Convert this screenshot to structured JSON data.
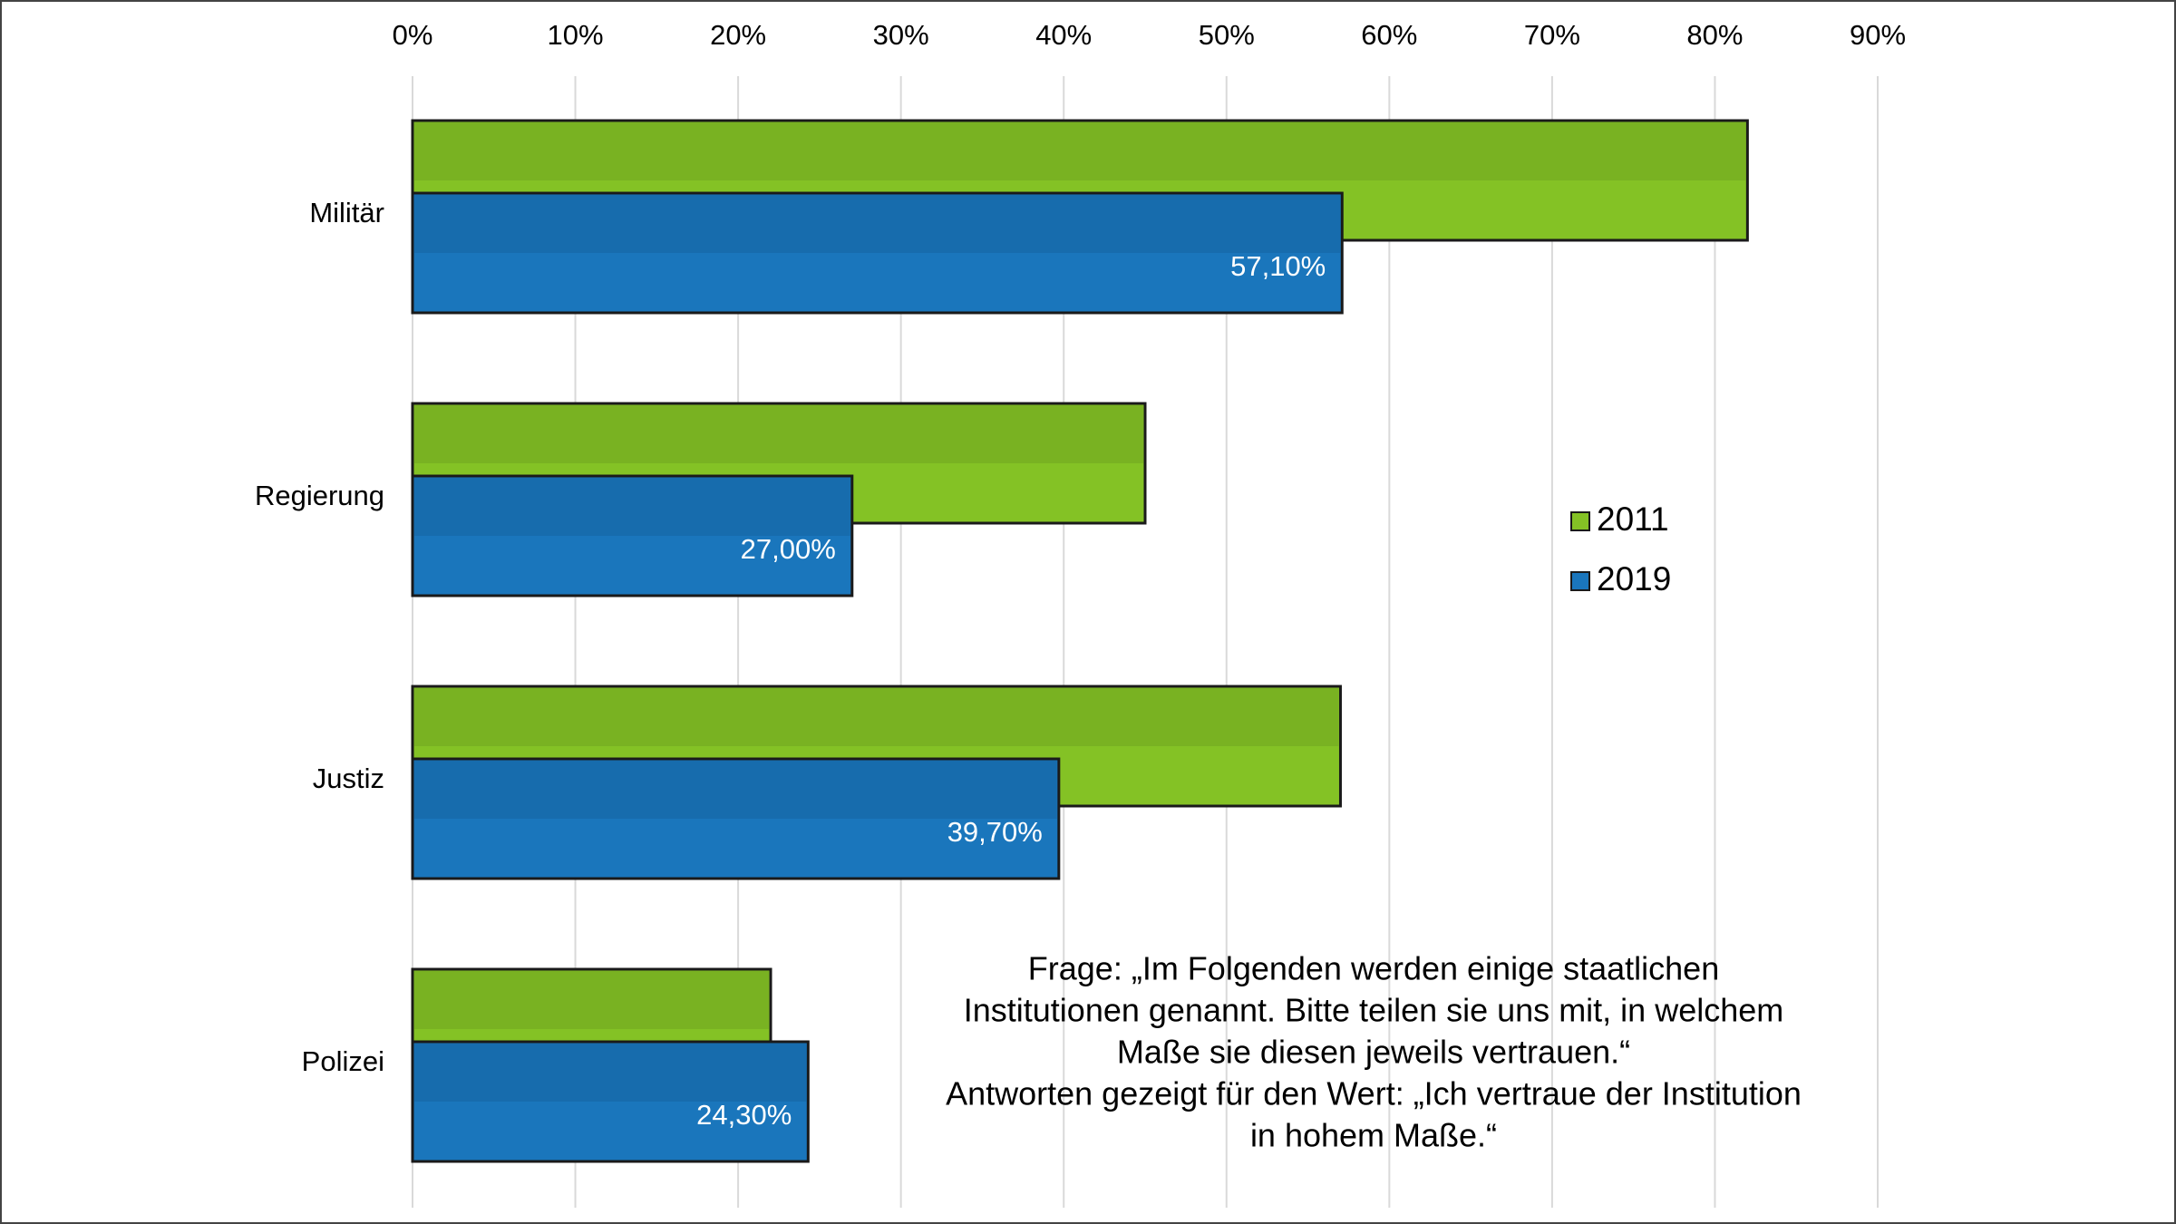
{
  "chart_data": {
    "type": "bar",
    "orientation": "horizontal",
    "categories": [
      "Militär",
      "Regierung",
      "Justiz",
      "Polizei"
    ],
    "series": [
      {
        "name": "2011",
        "color": "#84c225",
        "values": [
          82,
          45,
          57,
          22
        ]
      },
      {
        "name": "2019",
        "color": "#1a76bc",
        "values": [
          57.1,
          27.0,
          39.7,
          24.3
        ],
        "value_labels": [
          "57,10%",
          "27,00%",
          "39,70%",
          "24,30%"
        ]
      }
    ],
    "xlim": [
      0,
      90
    ],
    "xticks": [
      {
        "value": 0,
        "label": "0%"
      },
      {
        "value": 10,
        "label": "10%"
      },
      {
        "value": 20,
        "label": "20%"
      },
      {
        "value": 30,
        "label": "30%"
      },
      {
        "value": 40,
        "label": "40%"
      },
      {
        "value": 50,
        "label": "50%"
      },
      {
        "value": 60,
        "label": "60%"
      },
      {
        "value": 70,
        "label": "70%"
      },
      {
        "value": 80,
        "label": "80%"
      },
      {
        "value": 90,
        "label": "90%"
      }
    ],
    "grid": true,
    "legend": "right",
    "annotation": [
      "Frage: „Im Folgenden werden einige staatlichen",
      "Institutionen genannt. Bitte teilen sie uns mit, in welchem",
      "Maße sie diesen jeweils vertrauen.“",
      "Antworten gezeigt für den Wert: „Ich vertraue der Institution",
      "in hohem Maße.“"
    ]
  }
}
